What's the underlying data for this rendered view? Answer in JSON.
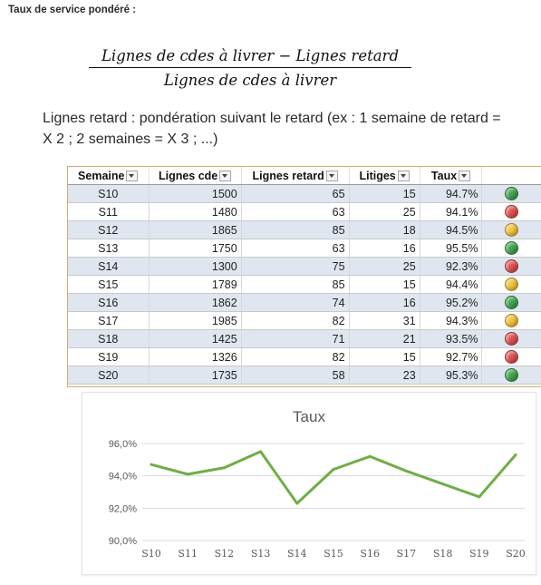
{
  "heading": "Taux de service pondéré :",
  "formula": {
    "numerator": "Lignes de cdes à livrer − Lignes retard",
    "denominator": "Lignes de cdes à livrer"
  },
  "note": "Lignes retard : pondération suivant le retard (ex : 1 semaine de retard = X 2 ; 2 semaines = X 3 ; ...)",
  "colors": {
    "green": "#3fa34d",
    "red": "#e05050",
    "yellow": "#f2c43a",
    "line": "#70ad47"
  },
  "table": {
    "headers": [
      "Semaine",
      "Lignes cde",
      "Lignes retard",
      "Litiges",
      "Taux",
      ""
    ],
    "rows": [
      {
        "semaine": "S10",
        "lignes_cde": "1500",
        "lignes_retard": "65",
        "litiges": "15",
        "taux": "94.7%",
        "status": "green"
      },
      {
        "semaine": "S11",
        "lignes_cde": "1480",
        "lignes_retard": "63",
        "litiges": "25",
        "taux": "94.1%",
        "status": "red"
      },
      {
        "semaine": "S12",
        "lignes_cde": "1865",
        "lignes_retard": "85",
        "litiges": "18",
        "taux": "94.5%",
        "status": "yellow"
      },
      {
        "semaine": "S13",
        "lignes_cde": "1750",
        "lignes_retard": "63",
        "litiges": "16",
        "taux": "95.5%",
        "status": "green"
      },
      {
        "semaine": "S14",
        "lignes_cde": "1300",
        "lignes_retard": "75",
        "litiges": "25",
        "taux": "92.3%",
        "status": "red"
      },
      {
        "semaine": "S15",
        "lignes_cde": "1789",
        "lignes_retard": "85",
        "litiges": "15",
        "taux": "94.4%",
        "status": "yellow"
      },
      {
        "semaine": "S16",
        "lignes_cde": "1862",
        "lignes_retard": "74",
        "litiges": "16",
        "taux": "95.2%",
        "status": "green"
      },
      {
        "semaine": "S17",
        "lignes_cde": "1985",
        "lignes_retard": "82",
        "litiges": "31",
        "taux": "94.3%",
        "status": "yellow"
      },
      {
        "semaine": "S18",
        "lignes_cde": "1425",
        "lignes_retard": "71",
        "litiges": "21",
        "taux": "93.5%",
        "status": "red"
      },
      {
        "semaine": "S19",
        "lignes_cde": "1326",
        "lignes_retard": "82",
        "litiges": "15",
        "taux": "92.7%",
        "status": "red"
      },
      {
        "semaine": "S20",
        "lignes_cde": "1735",
        "lignes_retard": "58",
        "litiges": "23",
        "taux": "95.3%",
        "status": "green"
      }
    ]
  },
  "chart_data": {
    "type": "line",
    "title": "Taux",
    "categories": [
      "S10",
      "S11",
      "S12",
      "S13",
      "S14",
      "S15",
      "S16",
      "S17",
      "S18",
      "S19",
      "S20"
    ],
    "series": [
      {
        "name": "Taux",
        "values": [
          94.7,
          94.1,
          94.5,
          95.5,
          92.3,
          94.4,
          95.2,
          94.3,
          93.5,
          92.7,
          95.3
        ]
      }
    ],
    "yticks": [
      "90,0%",
      "92,0%",
      "94,0%",
      "96,0%"
    ],
    "ylim": [
      90,
      96
    ],
    "grid": true,
    "legend": "none"
  }
}
